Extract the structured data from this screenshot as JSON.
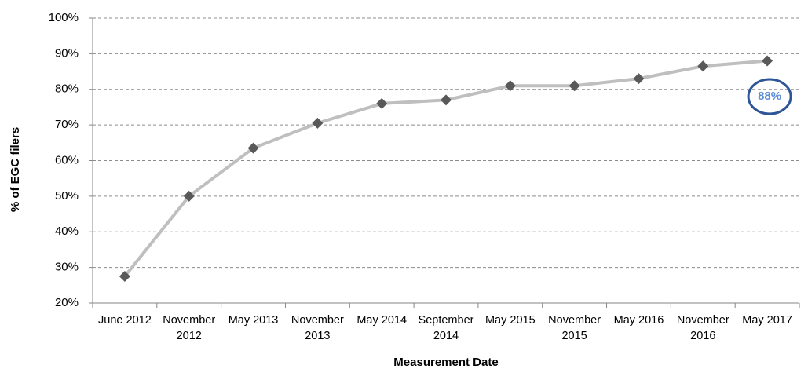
{
  "chart_data": {
    "type": "line",
    "categories": [
      "June 2012",
      "November 2012",
      "May 2013",
      "November 2013",
      "May 2014",
      "September 2014",
      "May 2015",
      "November 2015",
      "May 2016",
      "November 2016",
      "May 2017"
    ],
    "series": [
      {
        "color": "#bfbfbf",
        "marker_color": "#595959",
        "values": [
          27.5,
          50,
          63.5,
          70.5,
          76,
          77,
          81,
          81,
          83,
          86.5,
          88
        ]
      }
    ],
    "ylim": [
      20,
      100
    ],
    "yticks": [
      {
        "value": 20,
        "label": "20%"
      },
      {
        "value": 30,
        "label": "30%"
      },
      {
        "value": 40,
        "label": "40%"
      },
      {
        "value": 50,
        "label": "50%"
      },
      {
        "value": 60,
        "label": "60%"
      },
      {
        "value": 70,
        "label": "70%"
      },
      {
        "value": 80,
        "label": "80%"
      },
      {
        "value": 90,
        "label": "90%"
      },
      {
        "value": 100,
        "label": "100%"
      }
    ],
    "y_label": "% of EGC filers",
    "x_label": "Measurement Date",
    "annotation": "88%",
    "grid": true
  }
}
